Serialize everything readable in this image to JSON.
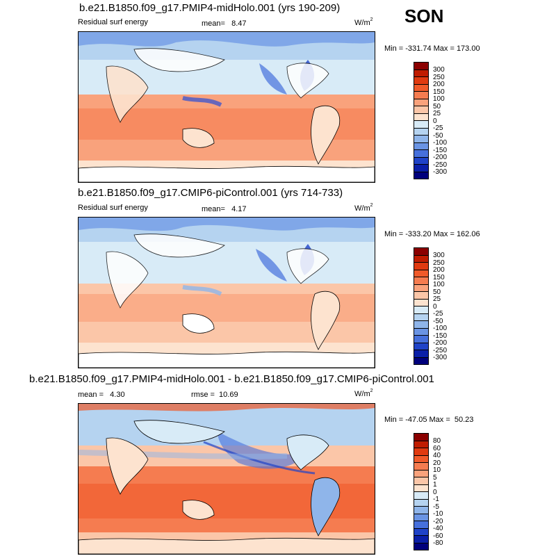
{
  "season": "SON",
  "panels": [
    {
      "title": "b.e21.B1850.f09_g17.PMIP4-midHolo.001 (yrs 190-209)",
      "left_label": "Residual surf energy",
      "center_label": "mean=   8.47",
      "units": "W/m",
      "units_sup": "2",
      "minmax": "Min = -331.74 Max = 173.00",
      "levels": [
        "300",
        "250",
        "200",
        "150",
        "100",
        "50",
        "25",
        "0",
        "-25",
        "-50",
        "-100",
        "-150",
        "-200",
        "-250",
        "-300"
      ]
    },
    {
      "title": "b.e21.B1850.f09_g17.CMIP6-piControl.001 (yrs 714-733)",
      "left_label": "Residual surf energy",
      "center_label": "mean=   4.17",
      "units": "W/m",
      "units_sup": "2",
      "minmax": "Min = -333.20 Max = 162.06",
      "levels": [
        "300",
        "250",
        "200",
        "150",
        "100",
        "50",
        "25",
        "0",
        "-25",
        "-50",
        "-100",
        "-150",
        "-200",
        "-250",
        "-300"
      ]
    },
    {
      "title": "b.e21.B1850.f09_g17.PMIP4-midHolo.001 - b.e21.B1850.f09_g17.CMIP6-piControl.001",
      "left_label": "mean =   4.30",
      "center_label": "rmse =  10.69",
      "units": "W/m",
      "units_sup": "2",
      "minmax": "Min = -47.05 Max =  50.23",
      "levels": [
        "80",
        "60",
        "40",
        "20",
        "10",
        "5",
        "1",
        "0",
        "-1",
        "-5",
        "-10",
        "-20",
        "-40",
        "-60",
        "-80"
      ]
    }
  ],
  "colors": {
    "palette": [
      "#8b0000",
      "#c01c00",
      "#e03a10",
      "#f05a2a",
      "#f57c50",
      "#f9a27c",
      "#fbc6a8",
      "#fde3cf",
      "#d8ebf7",
      "#b5d3f0",
      "#8fb5ea",
      "#6a94e4",
      "#4670dc",
      "#1f43c8",
      "#0a1fa8",
      "#00007c"
    ]
  }
}
